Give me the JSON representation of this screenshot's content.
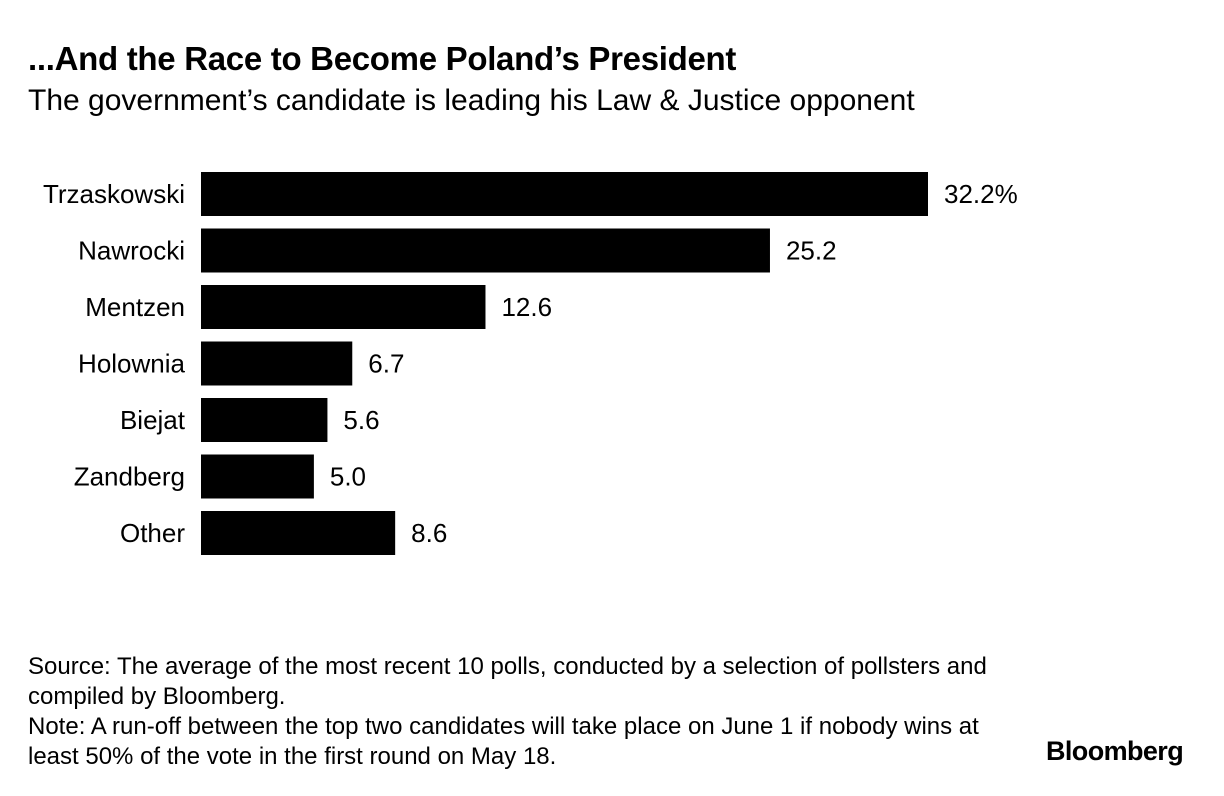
{
  "header": {
    "title": "...And the Race to Become Poland’s President",
    "subtitle": "The government’s candidate is leading his Law & Justice opponent"
  },
  "chart_data": {
    "type": "bar",
    "orientation": "horizontal",
    "categories": [
      "Trzaskowski",
      "Nawrocki",
      "Mentzen",
      "Holownia",
      "Biejat",
      "Zandberg",
      "Other"
    ],
    "values": [
      32.2,
      25.2,
      12.6,
      6.7,
      5.6,
      5.0,
      8.6
    ],
    "value_labels": [
      "32.2%",
      "25.2",
      "12.6",
      "6.7",
      "5.6",
      "5.0",
      "8.6"
    ],
    "bar_color": "#000000",
    "xlim": [
      0,
      32.2
    ],
    "grid": false,
    "legend": "none"
  },
  "footnotes": {
    "source": "Source: The average of the most recent 10 polls, conducted by a selection of pollsters and compiled by Bloomberg.",
    "note": "Note: A run-off between the top two candidates will take place on June 1 if nobody wins at least 50% of the vote in the first round on May 18."
  },
  "brand": "Bloomberg"
}
